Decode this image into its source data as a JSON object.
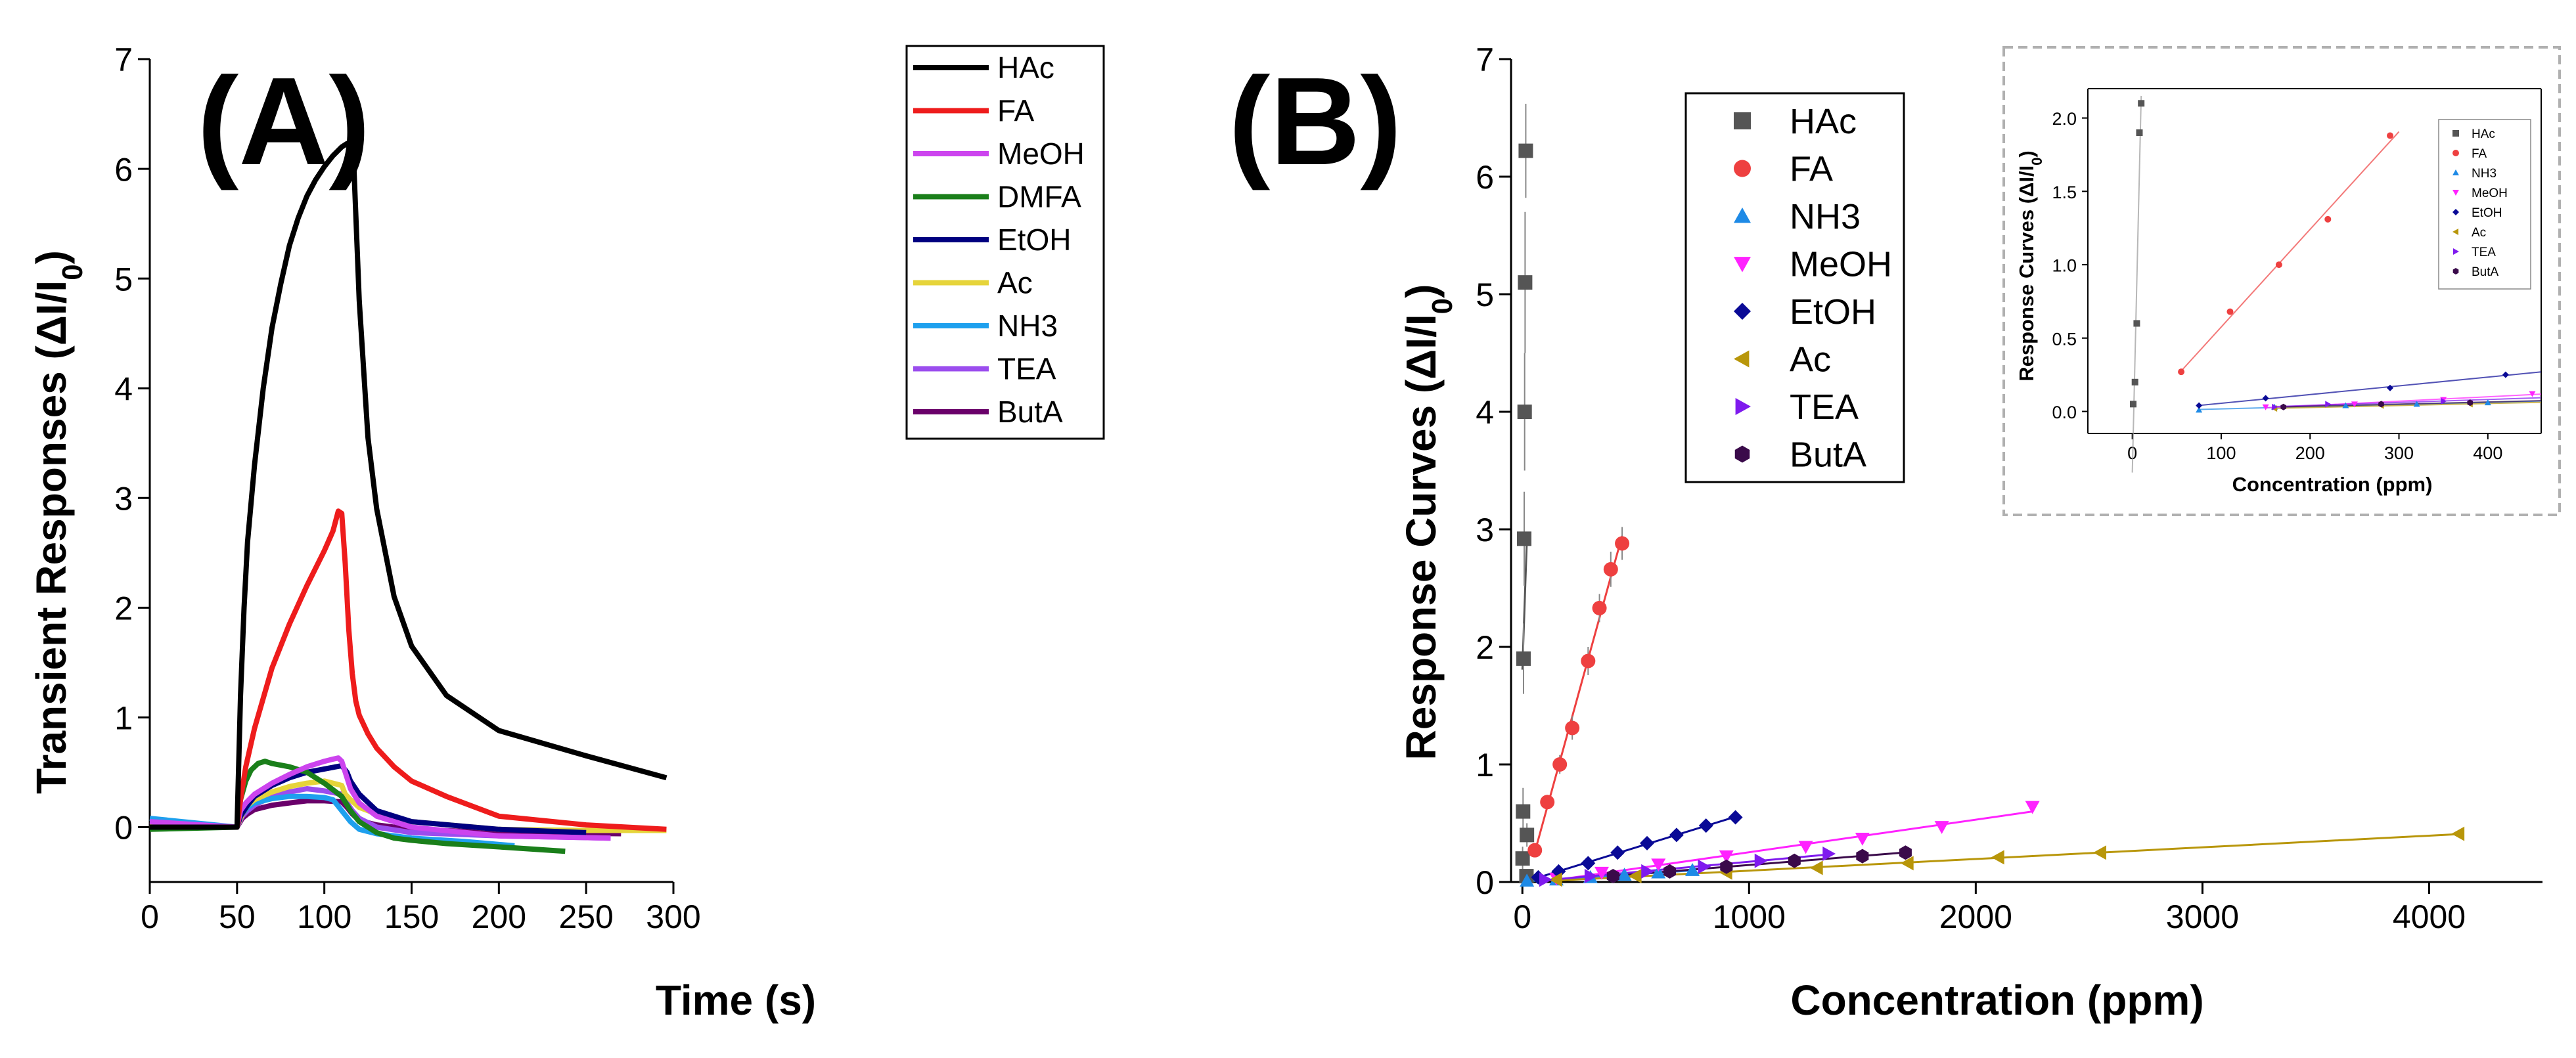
{
  "colors": {
    "HAc": "#000000",
    "FA": "#ee1c1c",
    "MeOH": "#cc44ee",
    "DMFA": "#1a7f1a",
    "EtOH": "#000080",
    "Ac": "#e6d43a",
    "NH3": "#1ea0ee",
    "TEA": "#9b4dee",
    "ButA": "#6a006a"
  },
  "chart_data": [
    {
      "type": "line",
      "panel_label": "(A)",
      "xlabel": "Time (s)",
      "ylabel": "Transient Responses (ΔI/I",
      "ylabel_sub": "0",
      "ylabel_close": ")",
      "xlim": [
        0,
        300
      ],
      "ylim": [
        -0.5,
        7
      ],
      "xticks": [
        0,
        50,
        100,
        150,
        200,
        250,
        300
      ],
      "yticks": [
        0,
        1,
        2,
        3,
        4,
        5,
        6,
        7
      ],
      "series": [
        {
          "name": "HAc",
          "color": "#000000",
          "x": [
            0,
            50,
            52,
            54,
            56,
            60,
            65,
            70,
            75,
            80,
            85,
            90,
            95,
            100,
            105,
            110,
            113,
            116,
            117,
            120,
            125,
            130,
            140,
            150,
            170,
            200,
            250,
            296
          ],
          "y": [
            0,
            0,
            1.2,
            2.0,
            2.6,
            3.3,
            4.0,
            4.55,
            4.95,
            5.3,
            5.55,
            5.75,
            5.9,
            6.02,
            6.12,
            6.2,
            6.23,
            6.18,
            6.0,
            4.8,
            3.55,
            2.9,
            2.1,
            1.65,
            1.2,
            0.88,
            0.65,
            0.45
          ]
        },
        {
          "name": "FA",
          "color": "#ee1c1c",
          "x": [
            0,
            50,
            52,
            55,
            60,
            70,
            80,
            90,
            100,
            105,
            108,
            110,
            112,
            114,
            116,
            118,
            120,
            125,
            130,
            140,
            150,
            170,
            200,
            250,
            296
          ],
          "y": [
            0,
            0,
            0.25,
            0.55,
            0.9,
            1.45,
            1.85,
            2.2,
            2.52,
            2.7,
            2.88,
            2.86,
            2.4,
            1.8,
            1.4,
            1.15,
            1.02,
            0.85,
            0.72,
            0.55,
            0.42,
            0.28,
            0.1,
            0.02,
            -0.02
          ]
        },
        {
          "name": "MeOH",
          "color": "#cc44ee",
          "x": [
            0,
            50,
            52,
            55,
            60,
            70,
            80,
            90,
            100,
            105,
            108,
            110,
            112,
            115,
            120,
            130,
            150,
            200,
            264
          ],
          "y": [
            0.05,
            0,
            0.15,
            0.22,
            0.3,
            0.4,
            0.48,
            0.55,
            0.6,
            0.62,
            0.63,
            0.6,
            0.5,
            0.35,
            0.22,
            0.1,
            0.0,
            -0.08,
            -0.1
          ]
        },
        {
          "name": "DMFA",
          "color": "#1a7f1a",
          "x": [
            0,
            50,
            52,
            55,
            58,
            62,
            66,
            70,
            80,
            90,
            100,
            110,
            115,
            120,
            130,
            140,
            150,
            170,
            200,
            238
          ],
          "y": [
            -0.02,
            0,
            0.25,
            0.42,
            0.52,
            0.58,
            0.6,
            0.58,
            0.55,
            0.5,
            0.4,
            0.28,
            0.15,
            0.05,
            -0.05,
            -0.1,
            -0.12,
            -0.15,
            -0.18,
            -0.22
          ]
        },
        {
          "name": "EtOH",
          "color": "#000080",
          "x": [
            0,
            50,
            52,
            56,
            60,
            70,
            80,
            90,
            100,
            110,
            113,
            115,
            120,
            130,
            150,
            200,
            250
          ],
          "y": [
            0,
            0,
            0.1,
            0.2,
            0.28,
            0.38,
            0.45,
            0.5,
            0.53,
            0.56,
            0.5,
            0.42,
            0.3,
            0.15,
            0.05,
            -0.02,
            -0.05
          ]
        },
        {
          "name": "Ac",
          "color": "#e6d43a",
          "x": [
            0,
            50,
            53,
            56,
            60,
            70,
            80,
            90,
            100,
            110,
            112,
            115,
            120,
            130,
            150,
            200,
            250,
            296
          ],
          "y": [
            0.02,
            0,
            0.12,
            0.2,
            0.25,
            0.32,
            0.37,
            0.4,
            0.42,
            0.38,
            0.3,
            0.25,
            0.18,
            0.12,
            0.05,
            -0.02,
            -0.03,
            -0.03
          ]
        },
        {
          "name": "NH3",
          "color": "#1ea0ee",
          "x": [
            0,
            50,
            53,
            56,
            60,
            70,
            80,
            90,
            100,
            105,
            110,
            115,
            120,
            130,
            150,
            180,
            209
          ],
          "y": [
            0.08,
            0,
            0.12,
            0.18,
            0.22,
            0.26,
            0.28,
            0.28,
            0.27,
            0.25,
            0.15,
            0.05,
            -0.02,
            -0.06,
            -0.1,
            -0.13,
            -0.17
          ]
        },
        {
          "name": "TEA",
          "color": "#9b4dee",
          "x": [
            0,
            50,
            53,
            56,
            60,
            70,
            80,
            90,
            100,
            110,
            113,
            116,
            120,
            130,
            150,
            200,
            264
          ],
          "y": [
            0.03,
            0,
            0.1,
            0.15,
            0.2,
            0.28,
            0.32,
            0.35,
            0.33,
            0.3,
            0.22,
            0.15,
            0.08,
            0.0,
            -0.05,
            -0.08,
            -0.1
          ]
        },
        {
          "name": "ButA",
          "color": "#6a006a",
          "x": [
            0,
            50,
            53,
            56,
            60,
            70,
            80,
            90,
            100,
            110,
            113,
            116,
            120,
            130,
            150,
            200,
            270
          ],
          "y": [
            0,
            0,
            0.08,
            0.12,
            0.16,
            0.2,
            0.22,
            0.24,
            0.24,
            0.23,
            0.18,
            0.12,
            0.06,
            0.02,
            -0.02,
            -0.05,
            -0.06
          ]
        }
      ]
    },
    {
      "type": "scatter",
      "panel_label": "(B)",
      "xlabel": "Concentration (ppm)",
      "ylabel": "Response Curves (ΔI/I",
      "ylabel_sub": "0",
      "ylabel_close": ")",
      "xlim": [
        -50,
        4500
      ],
      "ylim": [
        0,
        7
      ],
      "xticks": [
        0,
        1000,
        2000,
        3000,
        4000
      ],
      "yticks": [
        0,
        1,
        2,
        3,
        4,
        5,
        6,
        7
      ],
      "series": [
        {
          "name": "HAc",
          "marker": "square",
          "color": "#555555",
          "x": [
            1,
            3,
            5,
            8,
            10,
            12,
            15,
            18,
            20
          ],
          "y": [
            0.2,
            0.6,
            1.9,
            2.92,
            4.0,
            5.1,
            6.22,
            0.05,
            0.4
          ],
          "err": [
            0.1,
            0.2,
            0.3,
            0.4,
            0.5,
            0.6,
            0.4,
            0.05,
            0.1
          ]
        },
        {
          "name": "FA",
          "marker": "circle",
          "color": "#ee4040",
          "x": [
            55,
            110,
            165,
            220,
            290,
            340,
            390,
            440
          ],
          "y": [
            0.27,
            0.68,
            1.0,
            1.31,
            1.88,
            2.33,
            2.66,
            2.88
          ],
          "err": [
            0.05,
            0.05,
            0.08,
            0.1,
            0.12,
            0.12,
            0.15,
            0.14
          ]
        },
        {
          "name": "NH3",
          "marker": "triangle-up",
          "color": "#1e8ae6",
          "x": [
            20,
            150,
            300,
            450,
            600,
            750
          ],
          "y": [
            0.01,
            0.02,
            0.04,
            0.06,
            0.08,
            0.1
          ],
          "err": [
            0.01,
            0.01,
            0.01,
            0.01,
            0.01,
            0.01
          ]
        },
        {
          "name": "MeOH",
          "marker": "triangle-down",
          "color": "#ff22ff",
          "x": [
            150,
            350,
            600,
            900,
            1250,
            1500,
            1850,
            2250
          ],
          "y": [
            0.03,
            0.08,
            0.15,
            0.22,
            0.3,
            0.37,
            0.47,
            0.64
          ],
          "err": [
            0.01,
            0.01,
            0.02,
            0.02,
            0.02,
            0.03,
            0.03,
            0.04
          ]
        },
        {
          "name": "EtOH",
          "marker": "diamond",
          "color": "#0a0a96",
          "x": [
            70,
            160,
            290,
            420,
            550,
            680,
            810,
            940
          ],
          "y": [
            0.04,
            0.09,
            0.16,
            0.25,
            0.33,
            0.4,
            0.48,
            0.55
          ],
          "err": [
            0.01,
            0.01,
            0.02,
            0.02,
            0.02,
            0.03,
            0.03,
            0.03
          ]
        },
        {
          "name": "Ac",
          "marker": "triangle-left",
          "color": "#b8960a",
          "x": [
            150,
            500,
            900,
            1300,
            1700,
            2100,
            2550,
            4130
          ],
          "y": [
            0.02,
            0.05,
            0.08,
            0.12,
            0.16,
            0.21,
            0.25,
            0.41
          ],
          "err": [
            0.01,
            0.01,
            0.01,
            0.01,
            0.02,
            0.02,
            0.02,
            0.03
          ]
        },
        {
          "name": "TEA",
          "marker": "triangle-right",
          "color": "#7f1aee",
          "x": [
            100,
            300,
            550,
            800,
            1050,
            1350
          ],
          "y": [
            0.02,
            0.05,
            0.09,
            0.13,
            0.18,
            0.24
          ],
          "err": [
            0.01,
            0.01,
            0.01,
            0.01,
            0.02,
            0.02
          ]
        },
        {
          "name": "ButA",
          "marker": "hexagon",
          "color": "#3a0a4a",
          "x": [
            400,
            650,
            900,
            1200,
            1500,
            1690
          ],
          "y": [
            0.05,
            0.09,
            0.13,
            0.18,
            0.22,
            0.25
          ],
          "err": [
            0.01,
            0.01,
            0.01,
            0.02,
            0.02,
            0.02
          ]
        }
      ],
      "inset": {
        "xlabel": "Concentration (ppm)",
        "ylabel": "Response Curves (ΔI/I",
        "ylabel_sub": "0",
        "ylabel_close": ")",
        "xlim": [
          -50,
          460
        ],
        "ylim": [
          -0.15,
          2.2
        ],
        "xticks": [
          0,
          100,
          200,
          300,
          400
        ],
        "yticks": [
          "0.0",
          "0.5",
          "1.0",
          "1.5",
          "2.0"
        ],
        "series": [
          {
            "name": "HAc",
            "color": "#555555",
            "x": [
              1,
              3,
              5,
              8,
              10
            ],
            "y": [
              0.05,
              0.2,
              0.6,
              1.9,
              2.1
            ]
          },
          {
            "name": "FA",
            "color": "#ee4040",
            "x": [
              55,
              110,
              165,
              220,
              290
            ],
            "y": [
              0.27,
              0.68,
              1.0,
              1.31,
              1.88
            ]
          },
          {
            "name": "NH3",
            "color": "#1e8ae6",
            "x": [
              75,
              160,
              240,
              320,
              400
            ],
            "y": [
              0.01,
              0.03,
              0.04,
              0.05,
              0.06
            ]
          },
          {
            "name": "MeOH",
            "color": "#ff22ff",
            "x": [
              150,
              250,
              350,
              450
            ],
            "y": [
              0.03,
              0.05,
              0.08,
              0.12
            ]
          },
          {
            "name": "EtOH",
            "color": "#0a0a96",
            "x": [
              75,
              150,
              290,
              420
            ],
            "y": [
              0.04,
              0.09,
              0.16,
              0.25
            ]
          },
          {
            "name": "Ac",
            "color": "#b8960a",
            "x": [
              160,
              280,
              380
            ],
            "y": [
              0.02,
              0.04,
              0.05
            ]
          },
          {
            "name": "TEA",
            "color": "#7f1aee",
            "x": [
              160,
              220,
              350
            ],
            "y": [
              0.03,
              0.05,
              0.07
            ]
          },
          {
            "name": "ButA",
            "color": "#3a0a4a",
            "x": [
              170,
              280,
              380
            ],
            "y": [
              0.03,
              0.05,
              0.06
            ]
          }
        ]
      }
    }
  ]
}
